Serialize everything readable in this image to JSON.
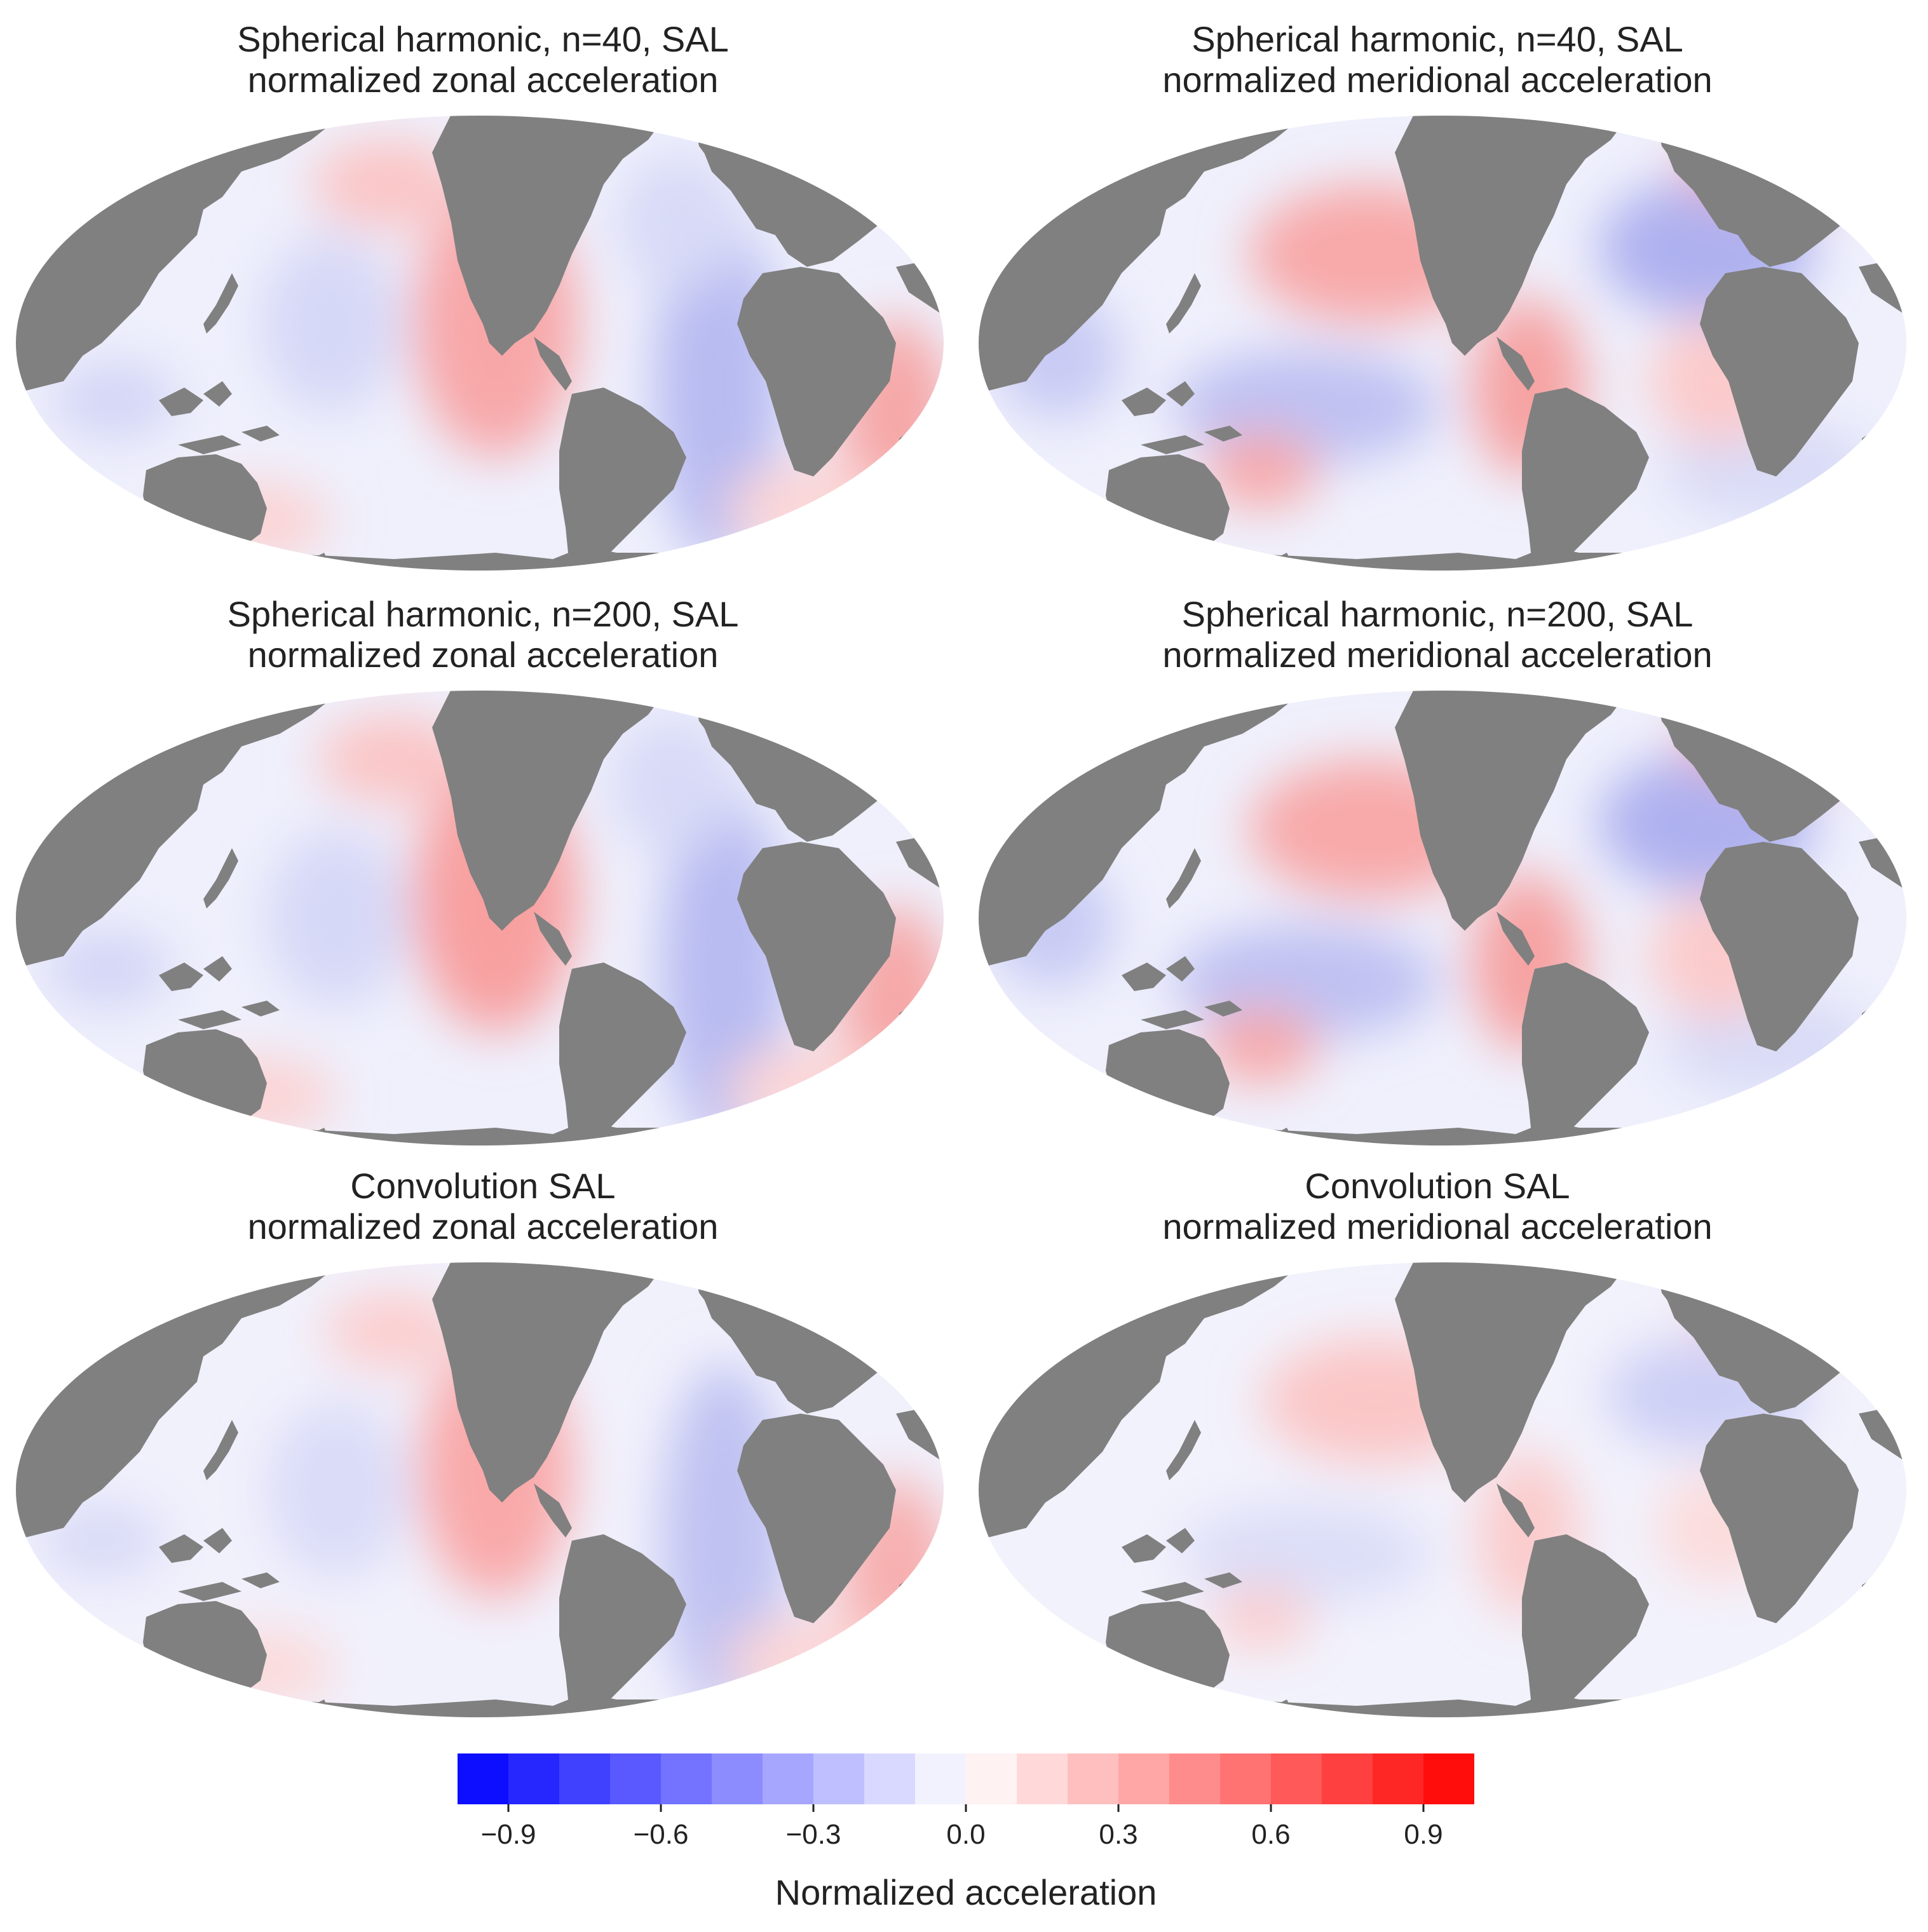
{
  "figure": {
    "panels": [
      {
        "id": "p1",
        "title_line1": "Spherical harmonic, n=40, SAL",
        "title_line2": "normalized zonal acceleration",
        "component": "zonal"
      },
      {
        "id": "p2",
        "title_line1": "Spherical harmonic, n=40, SAL",
        "title_line2": "normalized meridional acceleration",
        "component": "meridional"
      },
      {
        "id": "p3",
        "title_line1": "Spherical harmonic, n=200, SAL",
        "title_line2": "normalized zonal acceleration",
        "component": "zonal"
      },
      {
        "id": "p4",
        "title_line1": "Spherical harmonic, n=200, SAL",
        "title_line2": "normalized meridional acceleration",
        "component": "meridional"
      },
      {
        "id": "p5",
        "title_line1": "Convolution SAL",
        "title_line2": "normalized zonal acceleration",
        "component": "zonal"
      },
      {
        "id": "p6",
        "title_line1": "Convolution SAL",
        "title_line2": "normalized meridional acceleration",
        "component": "meridional"
      }
    ]
  },
  "colorbar": {
    "label": "Normalized acceleration",
    "min": -1.0,
    "max": 1.0,
    "levels": 20,
    "ticks": [
      "−0.9",
      "−0.6",
      "−0.3",
      "0.0",
      "0.3",
      "0.6",
      "0.9"
    ],
    "tick_values": [
      -0.9,
      -0.6,
      -0.3,
      0.0,
      0.3,
      0.6,
      0.9
    ],
    "colormap": "bwr",
    "low_color": "#0000ff",
    "mid_color": "#ffffff",
    "high_color": "#ff0000"
  },
  "land_color": "#808080",
  "projection": "Mollweide"
}
